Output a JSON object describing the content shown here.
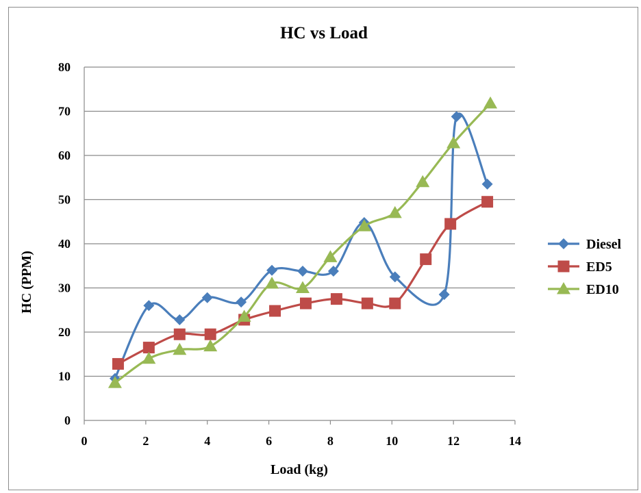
{
  "chart_data": {
    "type": "line",
    "title": "HC vs Load",
    "xlabel": "Load (kg)",
    "ylabel": "HC (PPM)",
    "xlim": [
      0,
      14
    ],
    "ylim": [
      0,
      80
    ],
    "xticks": [
      0,
      2,
      4,
      6,
      8,
      10,
      12,
      14
    ],
    "yticks": [
      0,
      10,
      20,
      30,
      40,
      50,
      60,
      70,
      80
    ],
    "grid": "horizontal",
    "legend_position": "right",
    "smooth": true,
    "series": [
      {
        "name": "Diesel",
        "color": "#4a7ebb",
        "marker": "diamond",
        "points": [
          [
            1,
            9.5
          ],
          [
            2.1,
            26
          ],
          [
            3.1,
            22.8
          ],
          [
            4,
            27.8
          ],
          [
            5.1,
            26.8
          ],
          [
            6.1,
            34
          ],
          [
            7.1,
            33.8
          ],
          [
            8.1,
            33.8
          ],
          [
            9.1,
            44.8
          ],
          [
            10.1,
            32.5
          ],
          [
            11.7,
            28.5
          ],
          [
            12.1,
            68.8
          ],
          [
            13.1,
            53.5
          ]
        ]
      },
      {
        "name": "ED5",
        "color": "#be4b48",
        "marker": "square",
        "points": [
          [
            1.1,
            12.8
          ],
          [
            2.1,
            16.5
          ],
          [
            3.1,
            19.5
          ],
          [
            4.1,
            19.5
          ],
          [
            5.2,
            22.8
          ],
          [
            6.2,
            24.8
          ],
          [
            7.2,
            26.5
          ],
          [
            8.2,
            27.5
          ],
          [
            9.2,
            26.5
          ],
          [
            10.1,
            26.5
          ],
          [
            11.1,
            36.5
          ],
          [
            11.9,
            44.5
          ],
          [
            13.1,
            49.5
          ]
        ]
      },
      {
        "name": "ED10",
        "color": "#98b954",
        "marker": "triangle",
        "points": [
          [
            1,
            8.5
          ],
          [
            2.1,
            14
          ],
          [
            3.1,
            16
          ],
          [
            4.1,
            16.8
          ],
          [
            5.2,
            23.5
          ],
          [
            6.1,
            31
          ],
          [
            7.1,
            30
          ],
          [
            8,
            37
          ],
          [
            9.1,
            44
          ],
          [
            10.1,
            47
          ],
          [
            11,
            54
          ],
          [
            12,
            62.8
          ],
          [
            13.2,
            71.8
          ]
        ]
      }
    ]
  }
}
